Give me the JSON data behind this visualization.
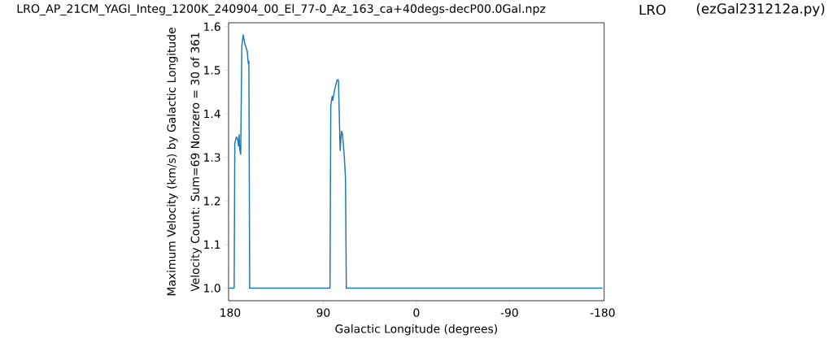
{
  "chart_data": {
    "type": "line",
    "title": "LRO_AP_21CM_YAGI_Integ_1200K_240904_00_El_77-0_Az_163_ca+40degs-decP00.0Gal.npz",
    "annotations": [
      "LRO",
      "(ezGal231212a.py)",
      "Velocity Count: Sum=69 Nonzero = 30 of 361"
    ],
    "xlabel": "Galactic Longitude (degrees)",
    "ylabel": "Maximum Velocity (km/s) by Galactic Longitude",
    "x": [
      181,
      176.1,
      175.5,
      174.0,
      172.7,
      171.9,
      171.3,
      170.8,
      169.8,
      168.7,
      167.4,
      165.8,
      163.5,
      162.4,
      161.9,
      161.1,
      84.3,
      83.5,
      82.7,
      81.4,
      80.8,
      78.7,
      76.6,
      75.3,
      73.7,
      72.4,
      71.4,
      69.6,
      68.5,
      67.7,
      -180
    ],
    "series": [
      {
        "color": "#1f77b4",
        "values": [
          1.0,
          1.0,
          1.332,
          1.347,
          1.341,
          1.327,
          1.352,
          1.319,
          1.307,
          1.555,
          1.581,
          1.561,
          1.544,
          1.515,
          1.521,
          1.0,
          1.0,
          1.0,
          1.419,
          1.44,
          1.431,
          1.459,
          1.478,
          1.477,
          1.316,
          1.36,
          1.354,
          1.301,
          1.251,
          1.0,
          1.0
        ]
      }
    ],
    "xlim": [
      181.5,
      -181.5
    ],
    "ylim": [
      0.971,
      1.609
    ],
    "xticks": [
      180,
      90,
      0,
      -90,
      -180
    ],
    "yticks": [
      {
        "value": 1.0,
        "label": "1.0"
      },
      {
        "value": 1.1,
        "label": "1.1"
      },
      {
        "value": 1.2,
        "label": "1.2"
      },
      {
        "value": 1.3,
        "label": "1.3"
      },
      {
        "value": 1.4,
        "label": "1.4"
      },
      {
        "value": 1.5,
        "label": "1.5"
      },
      {
        "value": 1.6,
        "label": "1.6"
      }
    ]
  }
}
